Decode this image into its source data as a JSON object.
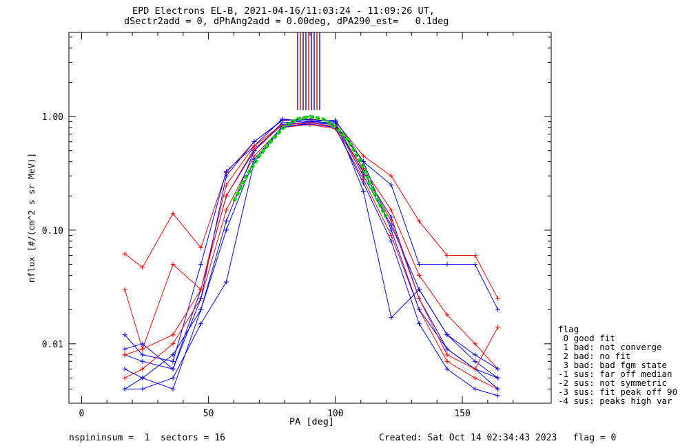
{
  "chart_data": {
    "type": "line",
    "title": "EPD Electrons EL-B, 2021-04-16/11:03:24 - 11:09:26 UT,",
    "subtitle": "dSectr2add = 0, dPhAng2add = 0.00deg, dPA290_est=   0.1deg",
    "xlabel": "PA [deg]",
    "ylabel": "nflux [#/(cm^2 s sr MeV)]",
    "xlim": [
      -5,
      185
    ],
    "ylim": [
      0.003,
      5.5
    ],
    "y_scale": "log",
    "x_ticks": [
      0,
      50,
      100,
      150
    ],
    "x_tick_labels": [
      "0",
      "50",
      "100",
      "150"
    ],
    "y_ticks": [
      0.01,
      0.1,
      1.0
    ],
    "y_tick_labels": [
      "0.01",
      "0.10",
      "1.00"
    ],
    "series": [
      {
        "color": "#ff0000",
        "x": [
          17,
          24,
          36,
          47,
          57,
          68,
          79,
          90,
          100,
          111,
          122,
          133,
          144,
          155,
          164
        ],
        "values": [
          0.062,
          0.047,
          0.14,
          0.07,
          0.32,
          0.6,
          0.92,
          0.95,
          0.9,
          0.45,
          0.3,
          0.12,
          0.06,
          0.06,
          0.025
        ]
      },
      {
        "color": "#0000ff",
        "x": [
          17,
          24,
          36,
          47,
          57,
          68,
          79,
          90,
          100,
          111,
          122,
          133,
          144,
          155,
          164
        ],
        "values": [
          0.012,
          0.008,
          0.007,
          0.05,
          0.33,
          0.55,
          0.95,
          0.9,
          0.93,
          0.4,
          0.25,
          0.05,
          0.05,
          0.05,
          0.02
        ]
      },
      {
        "color": "#ff0000",
        "x": [
          17,
          24,
          36,
          47,
          57,
          68,
          79,
          90,
          100,
          111,
          122,
          133,
          144,
          155,
          164
        ],
        "values": [
          0.03,
          0.009,
          0.05,
          0.03,
          0.25,
          0.55,
          0.85,
          0.9,
          0.8,
          0.35,
          0.15,
          0.04,
          0.018,
          0.01,
          0.006
        ]
      },
      {
        "color": "#0000ff",
        "x": [
          17,
          24,
          36,
          47,
          57,
          68,
          79,
          90,
          100,
          111,
          122,
          133,
          144,
          155,
          164
        ],
        "values": [
          0.008,
          0.007,
          0.006,
          0.03,
          0.2,
          0.5,
          0.88,
          0.92,
          0.85,
          0.3,
          0.11,
          0.03,
          0.012,
          0.007,
          0.005
        ]
      },
      {
        "color": "#ff0000",
        "x": [
          17,
          24,
          36,
          47,
          57,
          68,
          79,
          90,
          100,
          111,
          122,
          133,
          144,
          155,
          164
        ],
        "values": [
          0.005,
          0.006,
          0.01,
          0.025,
          0.15,
          0.45,
          0.8,
          0.85,
          0.78,
          0.28,
          0.09,
          0.02,
          0.007,
          0.005,
          0.004
        ]
      },
      {
        "color": "#0000ff",
        "x": [
          17,
          24,
          36,
          47,
          57,
          68,
          79,
          90,
          100,
          111,
          122,
          133,
          144,
          155,
          164
        ],
        "values": [
          0.004,
          0.005,
          0.004,
          0.02,
          0.1,
          0.42,
          0.82,
          0.86,
          0.8,
          0.26,
          0.08,
          0.015,
          0.006,
          0.004,
          0.0035
        ]
      },
      {
        "color": "#0000ff",
        "x": [
          17,
          24,
          36,
          47,
          57,
          68,
          79,
          90,
          100,
          111,
          122,
          133,
          144,
          155,
          164
        ],
        "values": [
          0.006,
          0.005,
          0.008,
          0.02,
          0.12,
          0.5,
          0.85,
          0.9,
          0.88,
          0.32,
          0.13,
          0.025,
          0.009,
          0.006,
          0.004
        ]
      },
      {
        "color": "#0000ff",
        "x": [
          17,
          24,
          36,
          47,
          57,
          68,
          79,
          90,
          100,
          111,
          122,
          133,
          144,
          155,
          164
        ],
        "values": [
          0.009,
          0.01,
          0.006,
          0.025,
          0.3,
          0.6,
          0.93,
          0.94,
          0.9,
          0.22,
          0.017,
          0.03,
          0.012,
          0.008,
          0.006
        ]
      },
      {
        "color": "#0000ff",
        "x": [
          17,
          24,
          36,
          47,
          57,
          68,
          79,
          90,
          100,
          111,
          122,
          133,
          144,
          155,
          164
        ],
        "values": [
          0.004,
          0.004,
          0.005,
          0.015,
          0.035,
          0.4,
          0.8,
          0.88,
          0.85,
          0.4,
          0.1,
          0.02,
          0.009,
          0.006,
          0.005
        ]
      },
      {
        "color": "#ff0000",
        "x": [
          17,
          24,
          36,
          47,
          57,
          68,
          79,
          90,
          100,
          111,
          122,
          133,
          144,
          155,
          164
        ],
        "values": [
          0.008,
          0.009,
          0.012,
          0.03,
          0.2,
          0.52,
          0.84,
          0.88,
          0.82,
          0.33,
          0.12,
          0.025,
          0.008,
          0.006,
          0.014
        ]
      }
    ],
    "fit_curve": {
      "color": "#00dd00",
      "x": [
        60,
        65,
        70,
        75,
        80,
        85,
        90,
        95,
        100,
        105,
        110,
        115,
        120
      ],
      "values": [
        0.18,
        0.3,
        0.45,
        0.62,
        0.82,
        0.95,
        1.0,
        0.95,
        0.82,
        0.62,
        0.4,
        0.22,
        0.13
      ]
    }
  },
  "legend": {
    "heading": "flag",
    "items": [
      " 0 good fit",
      " 1 bad: not converge",
      " 2 bad: no fit",
      " 3 bad: bad fgm state",
      "-1 sus: far off median",
      "-2 sus: not symmetric",
      "-3 sus: fit peak off 90",
      "-4 sus: peaks high var"
    ]
  },
  "footer": {
    "left": "nspininsum =  1  sectors = 16",
    "right": "Created: Sat Oct 14 02:34:43 2023   flag = 0"
  }
}
